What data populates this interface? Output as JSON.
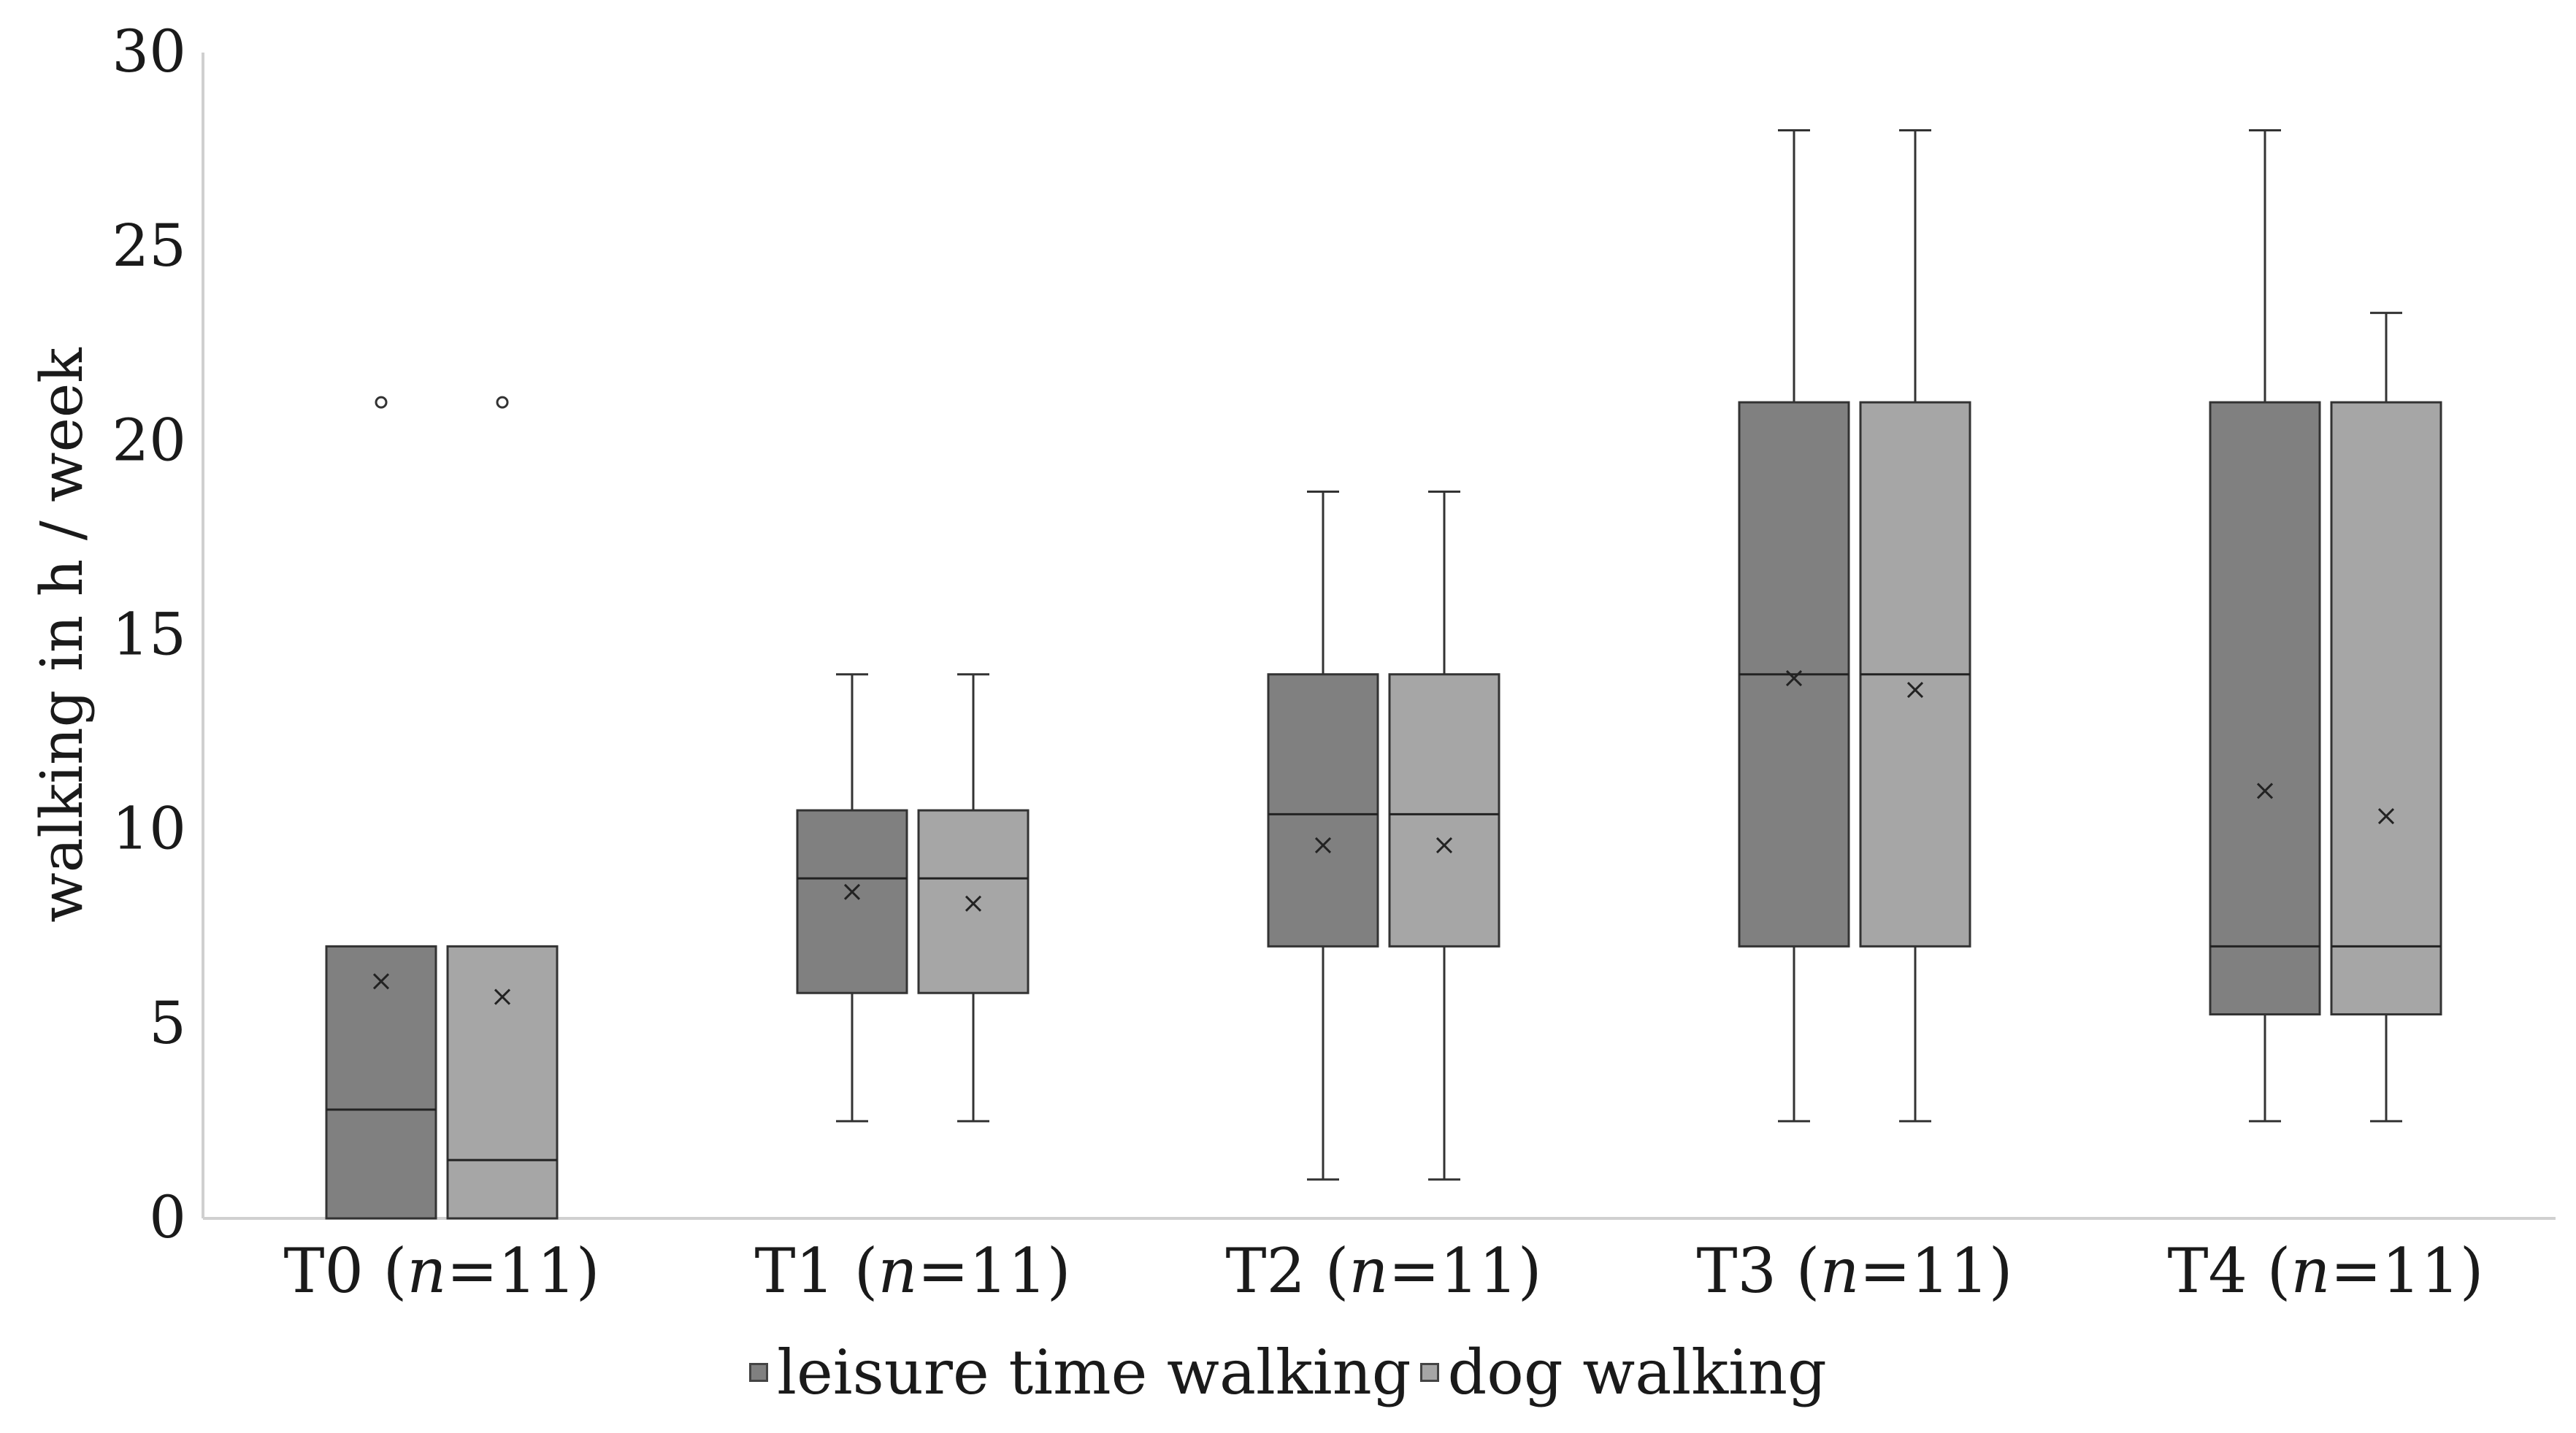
{
  "chart_data": {
    "type": "boxplot",
    "title": "",
    "xlabel": "",
    "ylabel": "walking in h / week",
    "ylim": [
      0,
      30
    ],
    "yticks": [
      0,
      5,
      10,
      15,
      20,
      25,
      30
    ],
    "grid": false,
    "legend_position": "bottom",
    "groups": [
      {
        "label": "T0",
        "n_label": "n",
        "n_value": "=11)"
      },
      {
        "label": "T1",
        "n_label": "n",
        "n_value": "=11)"
      },
      {
        "label": "T2",
        "n_label": "n",
        "n_value": "=11)"
      },
      {
        "label": "T3",
        "n_label": "n",
        "n_value": "=11)"
      },
      {
        "label": "T4",
        "n_label": "n",
        "n_value": "=11)"
      }
    ],
    "series": [
      {
        "name": "leisure time walking",
        "color": "#808080",
        "boxes": [
          {
            "whisker_low": 0,
            "q1": 0,
            "median": 2.8,
            "q3": 7,
            "whisker_high": 7,
            "mean": 6.1,
            "outliers": [
              21
            ]
          },
          {
            "whisker_low": 2.5,
            "q1": 5.8,
            "median": 8.75,
            "q3": 10.5,
            "whisker_high": 14,
            "mean": 8.4,
            "outliers": []
          },
          {
            "whisker_low": 1,
            "q1": 7,
            "median": 10.4,
            "q3": 14,
            "whisker_high": 18.7,
            "mean": 9.6,
            "outliers": []
          },
          {
            "whisker_low": 2.5,
            "q1": 7,
            "median": 14,
            "q3": 21,
            "whisker_high": 28,
            "mean": 13.9,
            "outliers": []
          },
          {
            "whisker_low": 2.5,
            "q1": 5.25,
            "median": 7,
            "q3": 21,
            "whisker_high": 28,
            "mean": 11,
            "outliers": []
          }
        ]
      },
      {
        "name": "dog walking",
        "color": "#a6a6a6",
        "boxes": [
          {
            "whisker_low": 0,
            "q1": 0,
            "median": 1.5,
            "q3": 7,
            "whisker_high": 7,
            "mean": 5.7,
            "outliers": [
              21
            ]
          },
          {
            "whisker_low": 2.5,
            "q1": 5.8,
            "median": 8.75,
            "q3": 10.5,
            "whisker_high": 14,
            "mean": 8.1,
            "outliers": []
          },
          {
            "whisker_low": 1,
            "q1": 7,
            "median": 10.4,
            "q3": 14,
            "whisker_high": 18.7,
            "mean": 9.6,
            "outliers": []
          },
          {
            "whisker_low": 2.5,
            "q1": 7,
            "median": 14,
            "q3": 21,
            "whisker_high": 28,
            "mean": 13.6,
            "outliers": []
          },
          {
            "whisker_low": 2.5,
            "q1": 5.25,
            "median": 7,
            "q3": 21,
            "whisker_high": 23.3,
            "mean": 10.35,
            "outliers": []
          }
        ]
      }
    ]
  }
}
